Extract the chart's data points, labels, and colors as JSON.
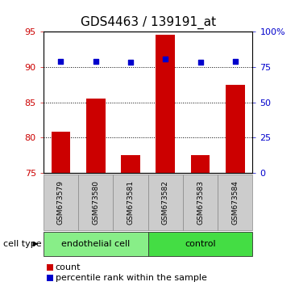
{
  "title": "GDS4463 / 139191_at",
  "samples": [
    "GSM673579",
    "GSM673580",
    "GSM673581",
    "GSM673582",
    "GSM673583",
    "GSM673584"
  ],
  "bar_values": [
    80.8,
    85.5,
    77.5,
    94.5,
    77.5,
    87.5
  ],
  "percentile_values": [
    79.0,
    79.0,
    78.0,
    80.5,
    78.5,
    79.0
  ],
  "bar_color": "#cc0000",
  "percentile_color": "#0000cc",
  "ylim_left": [
    75,
    95
  ],
  "ylim_right": [
    0,
    100
  ],
  "yticks_left": [
    75,
    80,
    85,
    90,
    95
  ],
  "yticks_right": [
    0,
    25,
    50,
    75,
    100
  ],
  "ytick_labels_right": [
    "0",
    "25",
    "50",
    "75",
    "100%"
  ],
  "groups": [
    {
      "label": "endothelial cell",
      "start": 0,
      "end": 2,
      "color": "#88ee88"
    },
    {
      "label": "control",
      "start": 3,
      "end": 5,
      "color": "#44dd44"
    }
  ],
  "group_label": "cell type",
  "legend_count_label": "count",
  "legend_percentile_label": "percentile rank within the sample",
  "background_color": "#ffffff",
  "tick_label_color_left": "#cc0000",
  "tick_label_color_right": "#0000cc",
  "bar_width": 0.55,
  "dotted_grid_color": "#000000",
  "title_fontsize": 11,
  "axis_fontsize": 8,
  "legend_fontsize": 8,
  "sample_box_color": "#cccccc",
  "sample_fontsize": 6.5
}
